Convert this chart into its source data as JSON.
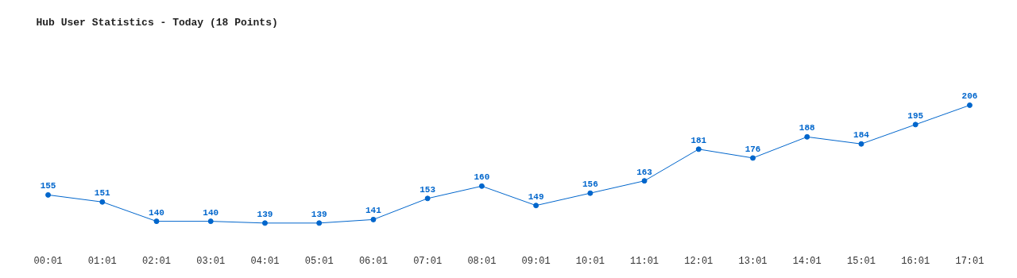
{
  "chart_data": {
    "type": "line",
    "title": "Hub User Statistics - Today (18 Points)",
    "categories": [
      "00:01",
      "01:01",
      "02:01",
      "03:01",
      "04:01",
      "05:01",
      "06:01",
      "07:01",
      "08:01",
      "09:01",
      "10:01",
      "11:01",
      "12:01",
      "13:01",
      "14:01",
      "15:01",
      "16:01",
      "17:01"
    ],
    "series": [
      {
        "color": "#0066cc",
        "values": [
          155,
          151,
          140,
          140,
          139,
          139,
          141,
          153,
          160,
          149,
          156,
          163,
          181,
          176,
          188,
          184,
          195,
          206
        ]
      }
    ],
    "data_labels": true,
    "marker": "circle",
    "grid": false,
    "tick_labels": "x",
    "line_style": "solid"
  }
}
